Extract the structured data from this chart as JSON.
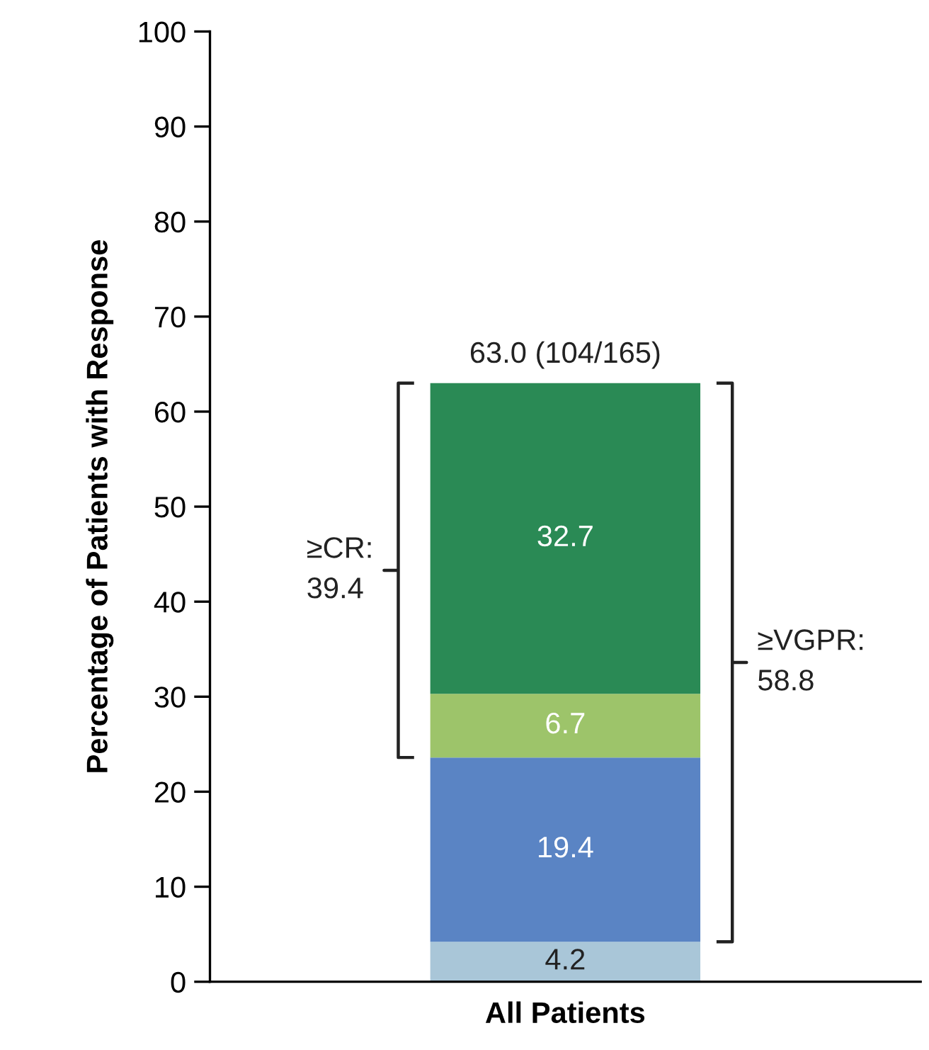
{
  "chart_data": {
    "type": "bar",
    "stacked": true,
    "ylabel": "Percentage of Patients with Response",
    "categories": [
      "All Patients"
    ],
    "series": [
      {
        "color": "#a9c6d8",
        "values": [
          4.2
        ]
      },
      {
        "color": "#5a84c4",
        "values": [
          19.4
        ]
      },
      {
        "color": "#9dc46a",
        "values": [
          6.7
        ]
      },
      {
        "color": "#2a8a55",
        "values": [
          32.7
        ]
      }
    ],
    "totals": [
      "63.0 (104/165)"
    ],
    "data_labels": true,
    "annotations": [
      "≥CR:\n39.4",
      "≥VGPR:\n58.8"
    ],
    "ylim": [
      0,
      100
    ],
    "yticks": [
      0,
      10,
      20,
      30,
      40,
      50,
      60,
      70,
      80,
      90,
      100
    ],
    "grid": false,
    "legend": false
  }
}
